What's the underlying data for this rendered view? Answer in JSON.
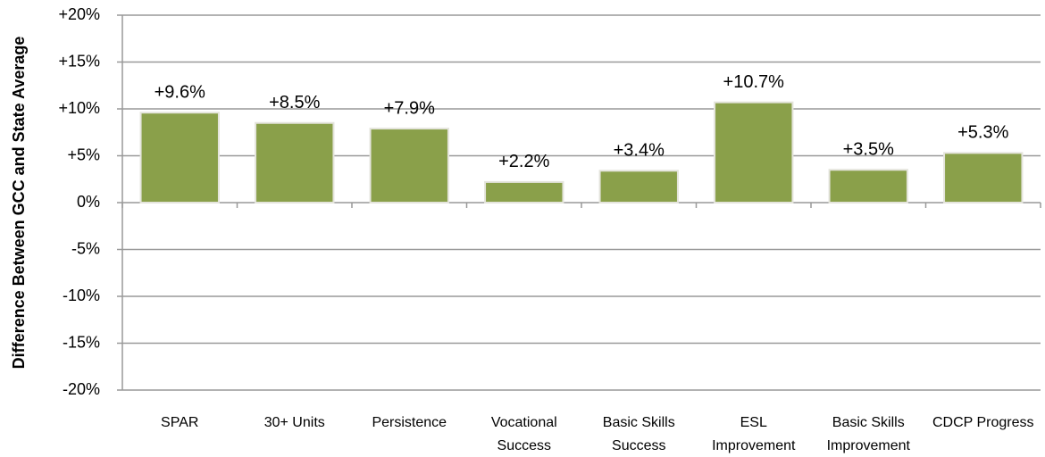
{
  "chart_data": {
    "type": "bar",
    "y_axis_label": "Difference Between GCC and State Average",
    "categories": [
      "SPAR",
      "30+ Units",
      "Persistence",
      "Vocational\nSuccess",
      "Basic Skills\nSuccess",
      "ESL\nImprovement",
      "Basic Skills\nImprovement",
      "CDCP Progress"
    ],
    "values": [
      9.6,
      8.5,
      7.9,
      2.2,
      3.4,
      10.7,
      3.5,
      5.3
    ],
    "value_labels": [
      "+9.6%",
      "+8.5%",
      "+7.9%",
      "+2.2%",
      "+3.4%",
      "+10.7%",
      "+3.5%",
      "+5.3%"
    ],
    "color": "#8aa04a",
    "ylim": [
      -20,
      20
    ],
    "yticks": [
      {
        "value": -20,
        "label": "-20%"
      },
      {
        "value": -15,
        "label": "-15%"
      },
      {
        "value": -10,
        "label": "-10%"
      },
      {
        "value": -5,
        "label": "-5%"
      },
      {
        "value": 0,
        "label": "0%"
      },
      {
        "value": 5,
        "label": "+5%"
      },
      {
        "value": 10,
        "label": "+10%"
      },
      {
        "value": 15,
        "label": "+15%"
      },
      {
        "value": 20,
        "label": "+20%"
      }
    ],
    "grid": true
  }
}
